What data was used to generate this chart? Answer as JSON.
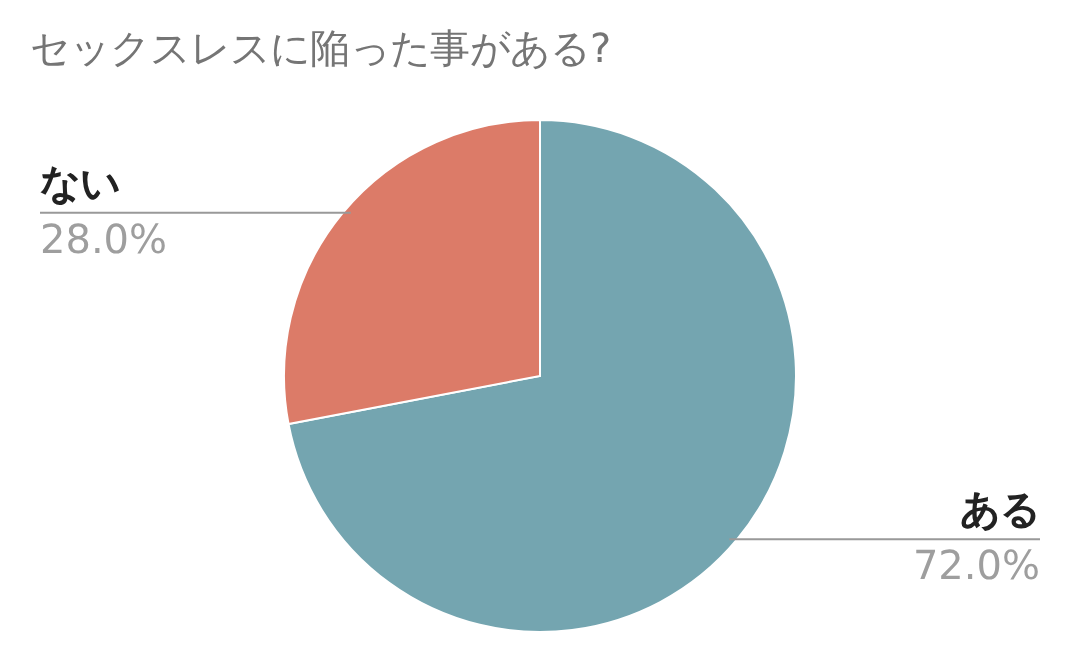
{
  "chart_data": {
    "type": "pie",
    "title": "セックスレスに陥った事がある?",
    "categories": [
      "ある",
      "ない"
    ],
    "values": [
      72.0,
      28.0
    ],
    "colors": [
      "#74a5b0",
      "#dc7b68"
    ],
    "value_labels": [
      "72.0%",
      "28.0%"
    ]
  }
}
